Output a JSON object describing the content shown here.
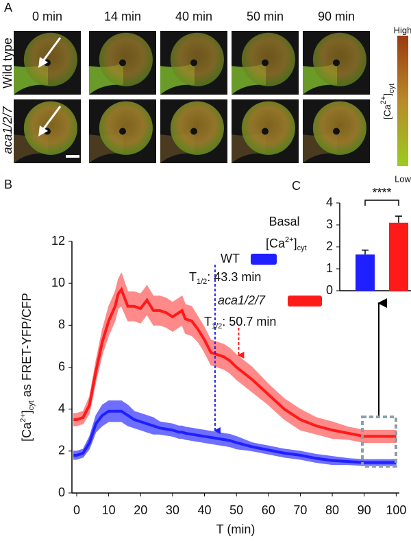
{
  "panel_a": {
    "label": "A",
    "times": [
      "0 min",
      "14 min",
      "40 min",
      "50 min",
      "90 min"
    ],
    "rows": [
      "Wild type",
      "aca1/2/7"
    ],
    "colorbar": {
      "high": "High",
      "low": "Low",
      "label": [
        {
          "text": "[Ca"
        },
        {
          "text": "2+",
          "style": "sup"
        },
        {
          "text": "]"
        },
        {
          "text": "cyt",
          "style": "sub"
        }
      ]
    }
  },
  "chart_data": [
    {
      "type": "line",
      "panel": "B",
      "x": [
        -1,
        0,
        2,
        4,
        6,
        8,
        10,
        12,
        13,
        14,
        16,
        18,
        20,
        22,
        24,
        26,
        28,
        30,
        32,
        33,
        34,
        36,
        38,
        40,
        42,
        44,
        46,
        48,
        50,
        55,
        60,
        65,
        70,
        75,
        80,
        85,
        90,
        95,
        100
      ],
      "series": [
        {
          "name": "WT",
          "color": "#1f1fff",
          "band_color": "#6f6fff",
          "values": [
            1.8,
            1.8,
            1.9,
            2.4,
            3.3,
            3.7,
            3.9,
            3.9,
            3.9,
            3.9,
            3.7,
            3.5,
            3.4,
            3.3,
            3.2,
            3.1,
            3.05,
            3.0,
            2.9,
            2.9,
            2.85,
            2.8,
            2.75,
            2.7,
            2.65,
            2.6,
            2.55,
            2.5,
            2.4,
            2.2,
            2.05,
            1.9,
            1.8,
            1.65,
            1.55,
            1.5,
            1.45,
            1.45,
            1.45
          ],
          "errors": [
            0.2,
            0.2,
            0.2,
            0.3,
            0.4,
            0.5,
            0.5,
            0.5,
            0.5,
            0.5,
            0.5,
            0.4,
            0.4,
            0.4,
            0.4,
            0.3,
            0.3,
            0.3,
            0.3,
            0.3,
            0.3,
            0.3,
            0.3,
            0.3,
            0.3,
            0.3,
            0.3,
            0.3,
            0.3,
            0.2,
            0.2,
            0.2,
            0.2,
            0.2,
            0.2,
            0.15,
            0.15,
            0.15,
            0.15
          ],
          "t_half": 43.3,
          "t_half_label": [
            {
              "text": "T"
            },
            {
              "text": "1/2",
              "style": "sub"
            },
            {
              "text": ": 43.3 min"
            }
          ]
        },
        {
          "name": "aca1/2/7",
          "color": "#ff1a1a",
          "band_color": "#ff8a8a",
          "values": [
            3.5,
            3.5,
            3.6,
            4.2,
            5.8,
            7.2,
            8.2,
            8.9,
            9.5,
            9.7,
            8.9,
            8.9,
            8.8,
            9.2,
            8.7,
            8.7,
            8.6,
            8.4,
            8.6,
            8.7,
            8.3,
            8.2,
            7.8,
            7.3,
            6.7,
            6.6,
            6.5,
            6.3,
            6.0,
            5.4,
            4.7,
            4.0,
            3.5,
            3.2,
            3.0,
            2.85,
            2.7,
            2.7,
            2.7
          ],
          "errors": [
            0.3,
            0.3,
            0.3,
            0.4,
            0.5,
            0.6,
            0.7,
            0.7,
            0.7,
            0.8,
            0.7,
            0.7,
            0.7,
            0.7,
            0.7,
            0.7,
            0.7,
            0.7,
            0.7,
            0.7,
            0.7,
            0.7,
            0.6,
            0.6,
            0.6,
            0.6,
            0.6,
            0.6,
            0.6,
            0.6,
            0.5,
            0.5,
            0.5,
            0.4,
            0.4,
            0.3,
            0.3,
            0.3,
            0.3
          ],
          "t_half": 50.7,
          "t_half_label": [
            {
              "text": "T"
            },
            {
              "text": "1/2",
              "style": "sub"
            },
            {
              "text": ": 50.7 min"
            }
          ]
        }
      ],
      "xlabel": "T (min)",
      "ylabel": [
        {
          "text": "[Ca"
        },
        {
          "text": "2+",
          "style": "sup"
        },
        {
          "text": "]"
        },
        {
          "text": "cyt",
          "style": "sub"
        },
        {
          "text": " as FRET-YFP/CFP"
        }
      ],
      "xlim": [
        -1.5,
        101
      ],
      "ylim": [
        0,
        12
      ],
      "xticks": [
        0,
        10,
        20,
        30,
        40,
        50,
        60,
        70,
        80,
        90,
        100
      ],
      "yticks": [
        0,
        2,
        4,
        6,
        8,
        10,
        12
      ]
    },
    {
      "type": "bar",
      "panel": "C",
      "title": "Basal",
      "subtitle": [
        {
          "text": "[Ca"
        },
        {
          "text": "2+",
          "style": "sup"
        },
        {
          "text": "]"
        },
        {
          "text": "cyt",
          "style": "sub"
        }
      ],
      "categories": [
        null,
        null
      ],
      "values": [
        1.65,
        3.1
      ],
      "errors": [
        0.2,
        0.3
      ],
      "colors": [
        "#1f1fff",
        "#ff1a1a"
      ],
      "ylim": [
        0,
        4
      ],
      "yticks": [
        0,
        1,
        2,
        3,
        4
      ],
      "significance": "****"
    }
  ]
}
